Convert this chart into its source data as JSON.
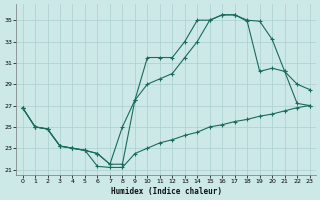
{
  "xlabel": "Humidex (Indice chaleur)",
  "bg_color": "#cce9e7",
  "grid_color": "#aacfcc",
  "line_color": "#1a6b5a",
  "xlim": [
    -0.5,
    23.5
  ],
  "ylim": [
    20.5,
    36.5
  ],
  "yticks": [
    21,
    23,
    25,
    27,
    29,
    31,
    33,
    35
  ],
  "xticks": [
    0,
    1,
    2,
    3,
    4,
    5,
    6,
    7,
    8,
    9,
    10,
    11,
    12,
    13,
    14,
    15,
    16,
    17,
    18,
    19,
    20,
    21,
    22,
    23
  ],
  "series1_x": [
    0,
    1,
    2,
    3,
    4,
    5,
    6,
    7,
    8,
    9,
    10,
    11,
    12,
    13,
    14,
    15,
    16,
    17,
    18,
    19,
    20,
    21,
    22,
    23
  ],
  "series1_y": [
    26.8,
    25.0,
    24.8,
    23.2,
    23.0,
    22.8,
    21.3,
    21.2,
    21.2,
    22.5,
    23.0,
    23.5,
    23.8,
    24.2,
    24.5,
    25.0,
    25.2,
    25.5,
    25.7,
    26.0,
    26.2,
    26.5,
    26.8,
    27.0
  ],
  "series2_x": [
    0,
    1,
    2,
    3,
    4,
    5,
    6,
    7,
    8,
    9,
    10,
    11,
    12,
    13,
    14,
    15,
    16,
    17,
    18,
    19,
    20,
    21,
    22,
    23
  ],
  "series2_y": [
    26.8,
    25.0,
    24.8,
    23.2,
    23.0,
    22.8,
    22.5,
    21.5,
    25.0,
    27.5,
    29.0,
    29.5,
    30.0,
    31.5,
    33.0,
    35.0,
    35.5,
    35.5,
    35.0,
    34.9,
    33.2,
    30.2,
    29.0,
    28.5
  ],
  "series3_x": [
    0,
    1,
    2,
    3,
    4,
    5,
    6,
    7,
    8,
    9,
    10,
    11,
    12,
    13,
    14,
    15,
    16,
    17,
    18,
    19,
    20,
    21,
    22,
    23
  ],
  "series3_y": [
    26.8,
    25.0,
    24.8,
    23.2,
    23.0,
    22.8,
    22.5,
    21.5,
    21.5,
    27.5,
    31.5,
    31.5,
    31.5,
    33.0,
    35.0,
    35.0,
    35.5,
    35.5,
    34.9,
    30.2,
    30.5,
    30.2,
    27.2,
    27.0
  ]
}
